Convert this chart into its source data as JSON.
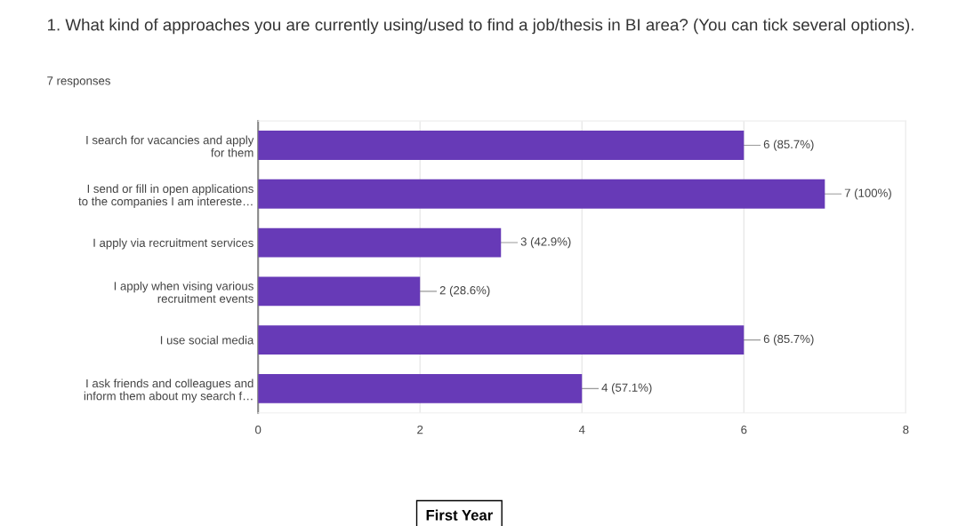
{
  "chart_data": {
    "type": "bar",
    "orientation": "horizontal",
    "title": "1. What kind of approaches you are currently using/used to find a job/thesis in BI area? (You can tick several options).",
    "subtitle": "7 responses",
    "categories": [
      "I search for vacancies and apply\nfor them",
      "I send or fill in open applications\nto the companies I am intereste…",
      "I apply via recruitment services",
      "I apply when vising various\nrecruitment events",
      "I use social media",
      "I ask friends and colleagues and\ninform them about my search f…"
    ],
    "values": [
      6,
      7,
      3,
      2,
      6,
      4
    ],
    "value_labels": [
      "6 (85.7%)",
      "7 (100%)",
      "3 (42.9%)",
      "2 (28.6%)",
      "6 (85.7%)",
      "4 (57.1%)"
    ],
    "color": "#673ab7",
    "xlim": [
      0,
      8
    ],
    "xticks": [
      0,
      2,
      4,
      6,
      8
    ],
    "grid": "x",
    "annotations": [
      "First Year"
    ]
  }
}
